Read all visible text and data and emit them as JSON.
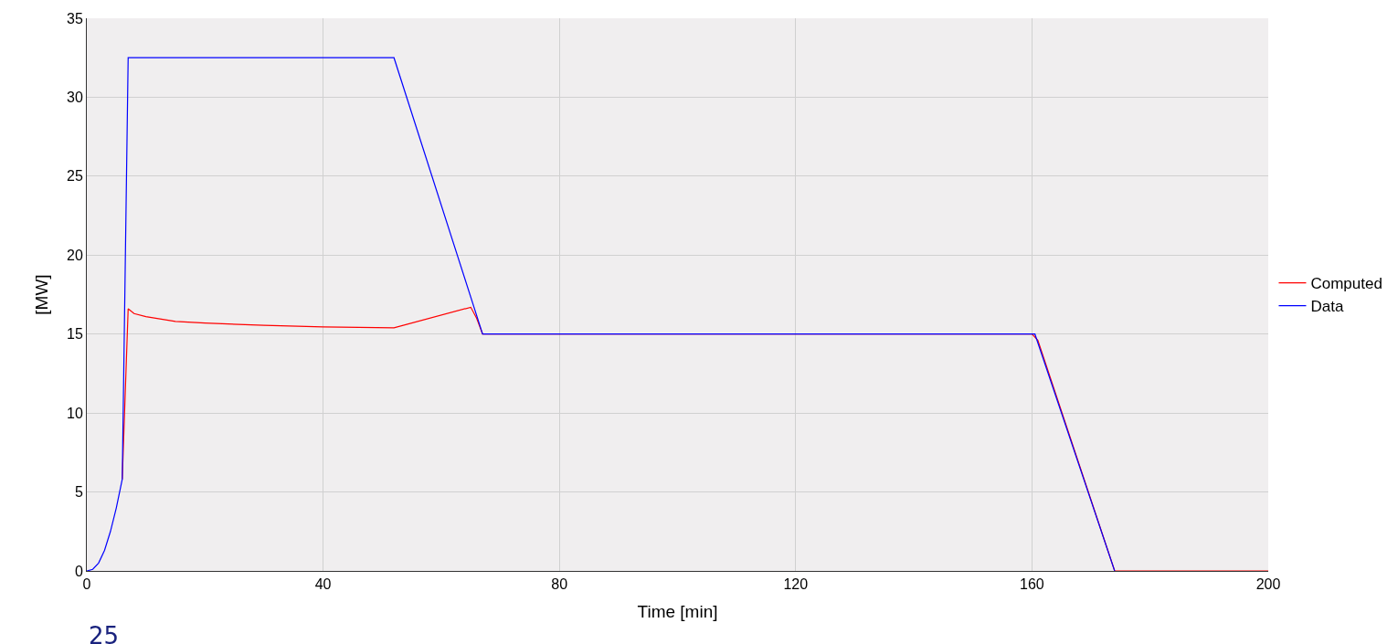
{
  "chart_data": {
    "type": "line",
    "xlabel": "Time [min]",
    "ylabel": "[MW]",
    "xlim": [
      0,
      200
    ],
    "xticks": [
      0,
      40,
      80,
      120,
      160,
      200
    ],
    "ylim": [
      0,
      35
    ],
    "yticks": [
      0,
      5,
      10,
      15,
      20,
      25,
      30,
      35
    ],
    "grid": true,
    "legend": "right",
    "marker": "none",
    "line_style": "solid",
    "series": [
      {
        "name": "Computed",
        "color": "#ff0000",
        "x": [
          6,
          7,
          8,
          10,
          15,
          20,
          30,
          40,
          52,
          65,
          66,
          67,
          160,
          161,
          174,
          200
        ],
        "values": [
          5.8,
          16.6,
          16.3,
          16.1,
          15.8,
          15.7,
          15.55,
          15.45,
          15.4,
          16.7,
          16,
          15,
          15,
          14.6,
          0,
          0
        ]
      },
      {
        "name": "Data",
        "color": "#0000ff",
        "x": [
          0,
          1,
          2,
          3,
          4,
          5,
          6,
          7,
          52,
          67,
          160.5,
          174
        ],
        "values": [
          0,
          0.1,
          0.5,
          1.3,
          2.5,
          4,
          5.8,
          32.5,
          32.5,
          15,
          15,
          0
        ]
      }
    ],
    "annotations": [
      "25"
    ]
  }
}
